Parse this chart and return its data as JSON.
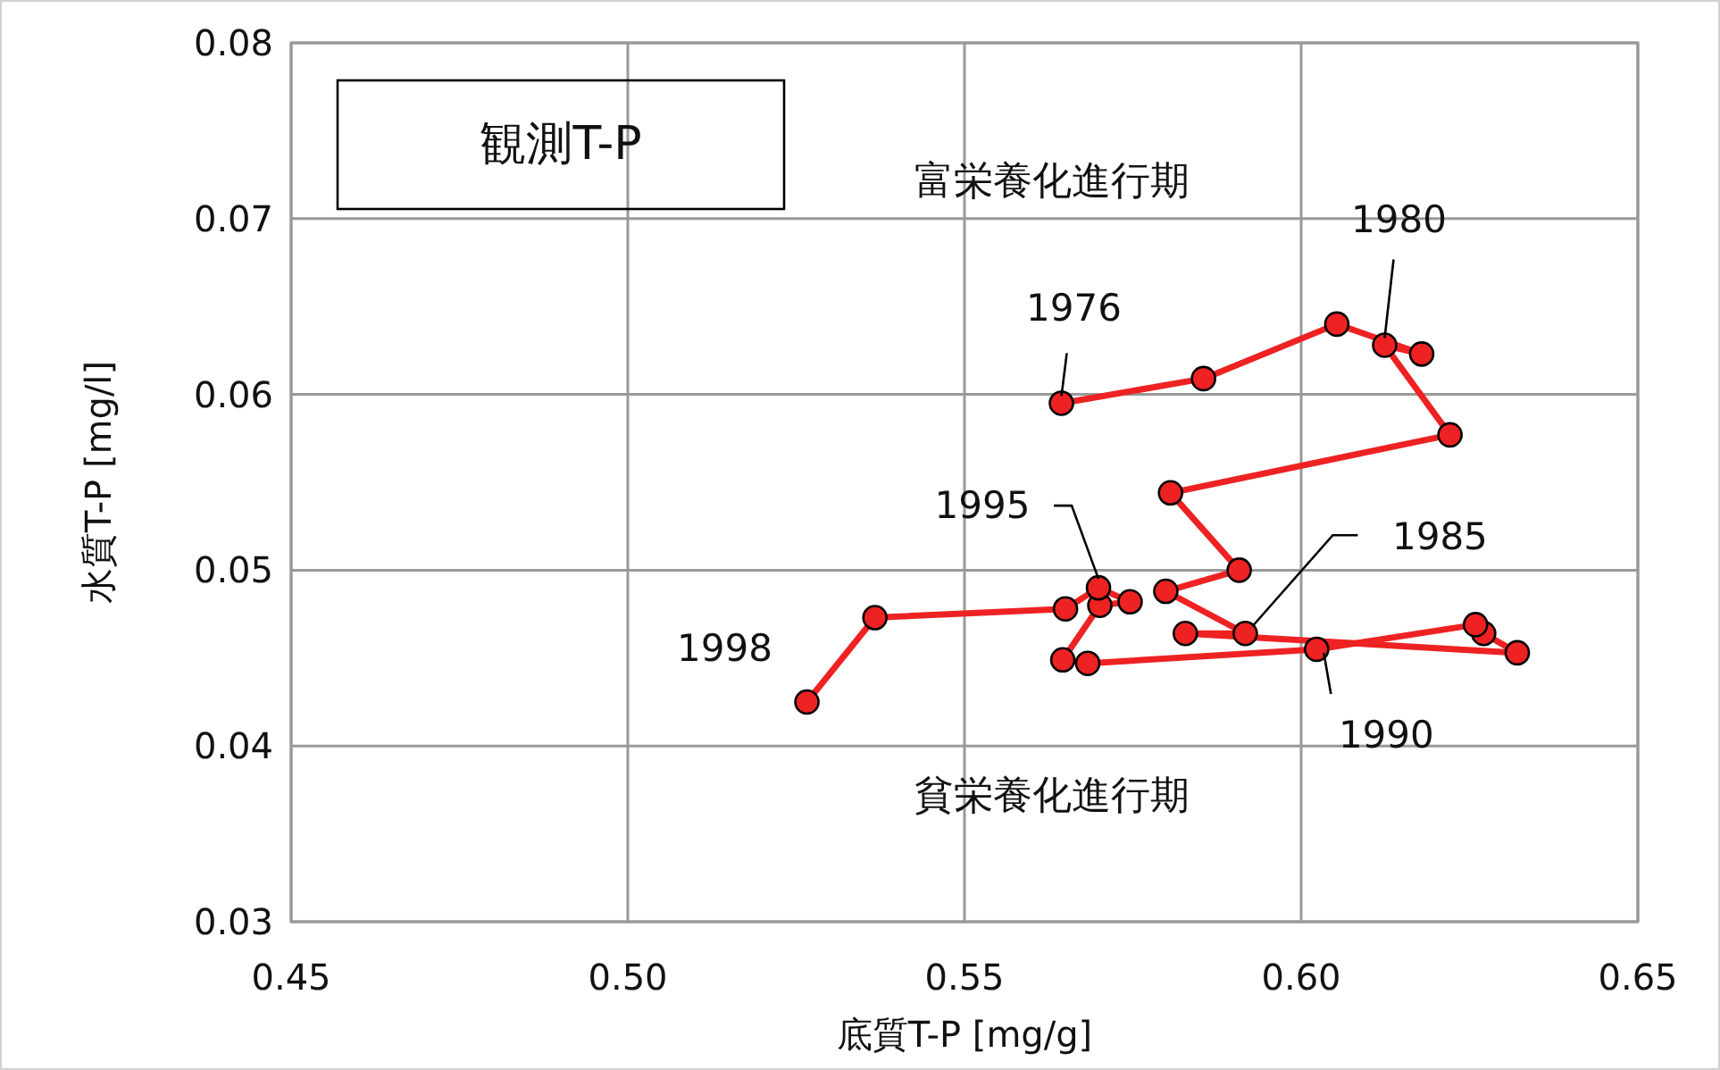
{
  "chart_data": {
    "type": "line",
    "title": "観測T-P",
    "xlabel": "底質T-P [mg/g]",
    "ylabel": "水質T-P [mg/l]",
    "xlim": [
      0.45,
      0.65
    ],
    "ylim": [
      0.03,
      0.08
    ],
    "xticks": [
      {
        "value": 0.45,
        "label": "0.45"
      },
      {
        "value": 0.5,
        "label": "0.50"
      },
      {
        "value": 0.55,
        "label": "0.55"
      },
      {
        "value": 0.6,
        "label": "0.60"
      },
      {
        "value": 0.65,
        "label": "0.65"
      }
    ],
    "yticks": [
      {
        "value": 0.03,
        "label": "0.03"
      },
      {
        "value": 0.04,
        "label": "0.04"
      },
      {
        "value": 0.05,
        "label": "0.05"
      },
      {
        "value": 0.06,
        "label": "0.06"
      },
      {
        "value": 0.07,
        "label": "0.07"
      },
      {
        "value": 0.08,
        "label": "0.08"
      }
    ],
    "grid": true,
    "marker": "circle",
    "line_style": "solid",
    "series": [
      {
        "color": "#ee2222",
        "x": [
          0.5644,
          0.5855,
          0.6053,
          0.6179,
          0.6124,
          0.6221,
          0.5806,
          0.5908,
          0.5799,
          0.5917,
          0.5828,
          0.6321,
          0.6271,
          0.6259,
          0.6023,
          0.5683,
          0.5646,
          0.5701,
          0.5746,
          0.5699,
          0.565,
          0.5367,
          0.5266
        ],
        "values": [
          0.0595,
          0.0609,
          0.064,
          0.0623,
          0.0628,
          0.0577,
          0.0544,
          0.05,
          0.0488,
          0.0464,
          0.0464,
          0.0453,
          0.0464,
          0.0469,
          0.0455,
          0.0447,
          0.0449,
          0.048,
          0.0482,
          0.049,
          0.0478,
          0.0473,
          0.0425
        ]
      }
    ],
    "annotations": [
      {
        "text": "1976",
        "x": 0.5644,
        "y": 0.0595
      },
      {
        "text": "1980",
        "x": 0.6124,
        "y": 0.0628
      },
      {
        "text": "1985",
        "x": 0.5917,
        "y": 0.0464
      },
      {
        "text": "1990",
        "x": 0.6023,
        "y": 0.0455
      },
      {
        "text": "1995",
        "x": 0.5699,
        "y": 0.049
      },
      {
        "text": "1998",
        "x": 0.5266,
        "y": 0.0425
      },
      "富栄養化進行期",
      "貧栄養化進行期"
    ]
  }
}
